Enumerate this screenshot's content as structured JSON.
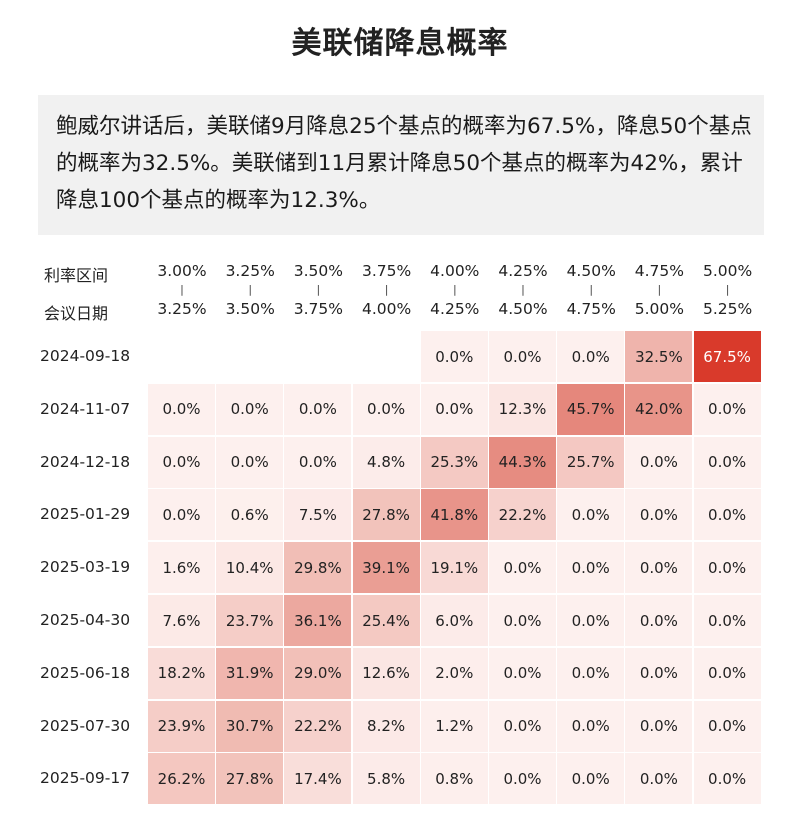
{
  "title": "美联储降息概率",
  "summary": "鲍威尔讲话后，美联储9月降息25个基点的概率为67.5%，降息50个基点的概率为32.5%。美联储到11月累计降息50个基点的概率为42%，累计降息100个基点的概率为12.3%。",
  "header_labels": {
    "rate_range": "利率区间",
    "meeting_date": "会议日期"
  },
  "chart_data": {
    "type": "heatmap",
    "title": "美联储降息概率",
    "columns": [
      {
        "low": "3.00%",
        "high": "3.25%"
      },
      {
        "low": "3.25%",
        "high": "3.50%"
      },
      {
        "low": "3.50%",
        "high": "3.75%"
      },
      {
        "low": "3.75%",
        "high": "4.00%"
      },
      {
        "low": "4.00%",
        "high": "4.25%"
      },
      {
        "low": "4.25%",
        "high": "4.50%"
      },
      {
        "low": "4.50%",
        "high": "4.75%"
      },
      {
        "low": "4.75%",
        "high": "5.00%"
      },
      {
        "low": "5.00%",
        "high": "5.25%"
      }
    ],
    "rows": [
      {
        "date": "2024-09-18",
        "values": [
          null,
          null,
          null,
          null,
          0.0,
          0.0,
          0.0,
          32.5,
          67.5
        ]
      },
      {
        "date": "2024-11-07",
        "values": [
          0.0,
          0.0,
          0.0,
          0.0,
          0.0,
          12.3,
          45.7,
          42.0,
          0.0
        ]
      },
      {
        "date": "2024-12-18",
        "values": [
          0.0,
          0.0,
          0.0,
          4.8,
          25.3,
          44.3,
          25.7,
          0.0,
          0.0
        ]
      },
      {
        "date": "2025-01-29",
        "values": [
          0.0,
          0.6,
          7.5,
          27.8,
          41.8,
          22.2,
          0.0,
          0.0,
          0.0
        ]
      },
      {
        "date": "2025-03-19",
        "values": [
          1.6,
          10.4,
          29.8,
          39.1,
          19.1,
          0.0,
          0.0,
          0.0,
          0.0
        ]
      },
      {
        "date": "2025-04-30",
        "values": [
          7.6,
          23.7,
          36.1,
          25.4,
          6.0,
          0.0,
          0.0,
          0.0,
          0.0
        ]
      },
      {
        "date": "2025-06-18",
        "values": [
          18.2,
          31.9,
          29.0,
          12.6,
          2.0,
          0.0,
          0.0,
          0.0,
          0.0
        ]
      },
      {
        "date": "2025-07-30",
        "values": [
          23.9,
          30.7,
          22.2,
          8.2,
          1.2,
          0.0,
          0.0,
          0.0,
          0.0
        ]
      },
      {
        "date": "2025-09-17",
        "values": [
          26.2,
          27.8,
          17.4,
          5.8,
          0.8,
          0.0,
          0.0,
          0.0,
          0.0
        ]
      }
    ],
    "value_unit": "%",
    "colors": {
      "max": "#d93a2b",
      "high": "#e2786c",
      "mid": "#f1bdb5",
      "low": "#fbe4e1",
      "zero": "#fdf0ee"
    }
  }
}
